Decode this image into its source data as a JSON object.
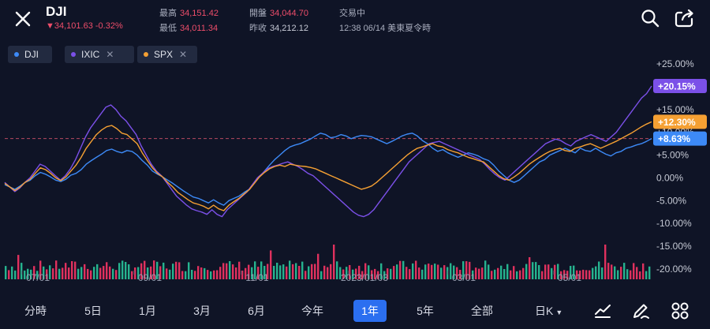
{
  "header": {
    "symbol": "DJI",
    "quote": "▼34,101.63 -0.32%",
    "stats": [
      {
        "label": "最高",
        "value": "34,151.42",
        "red": true
      },
      {
        "label": "最低",
        "value": "34,011.34",
        "red": true
      },
      {
        "label": "開盤",
        "value": "34,044.70",
        "red": true
      },
      {
        "label": "昨收",
        "value": "34,212.12",
        "red": false
      }
    ],
    "status": "交易中",
    "time": "12:38 06/14 美東夏令時"
  },
  "chips": [
    {
      "label": "DJI",
      "color": "#3d8af7",
      "closable": false
    },
    {
      "label": "IXIC",
      "color": "#7b50e8",
      "closable": true
    },
    {
      "label": "SPX",
      "color": "#f5a033",
      "closable": true
    }
  ],
  "chart_data": {
    "type": "line",
    "y_ticks": [
      "+25.00%",
      "+20.00%",
      "+15.00%",
      "+10.00%",
      "+5.00%",
      "0.00%",
      "-5.00%",
      "-10.00%",
      "-15.00%",
      "-20.00%"
    ],
    "x_ticks": [
      "07/01",
      "09/01",
      "11/01",
      "2023/01/03",
      "03/01",
      "05/01"
    ],
    "ylim": [
      -20,
      25
    ],
    "reference_level": 8.63,
    "series": [
      {
        "name": "DJI",
        "color": "#3d8af7",
        "last_label": "+8.63%",
        "last": 8.63,
        "values": [
          -1.5,
          -2.0,
          -2.5,
          -1.8,
          -1.0,
          -0.5,
          0.5,
          1.2,
          0.8,
          0.2,
          -0.5,
          -0.8,
          -0.3,
          0.6,
          1.0,
          1.8,
          3.0,
          3.8,
          4.5,
          5.2,
          6.0,
          6.3,
          5.8,
          5.5,
          6.0,
          5.8,
          5.0,
          3.8,
          2.8,
          1.5,
          0.8,
          0.2,
          -0.5,
          -1.2,
          -2.0,
          -2.8,
          -3.5,
          -4.2,
          -4.5,
          -5.0,
          -5.5,
          -4.8,
          -5.5,
          -6.0,
          -5.0,
          -4.5,
          -4.0,
          -3.2,
          -2.5,
          -1.0,
          0.2,
          1.5,
          2.8,
          4.0,
          5.0,
          6.0,
          6.8,
          7.2,
          7.5,
          8.0,
          8.5,
          9.2,
          9.8,
          9.5,
          8.8,
          9.0,
          9.5,
          9.2,
          8.6,
          9.0,
          9.3,
          9.2,
          9.0,
          8.5,
          8.0,
          7.5,
          8.0,
          8.6,
          9.2,
          9.6,
          9.8,
          9.2,
          8.2,
          7.5,
          6.5,
          5.8,
          6.2,
          5.5,
          5.0,
          4.5,
          5.0,
          5.5,
          5.2,
          4.8,
          4.2,
          3.8,
          2.8,
          1.5,
          0.5,
          -0.5,
          -1.0,
          -0.5,
          0.5,
          1.5,
          2.5,
          3.5,
          4.0,
          5.0,
          5.5,
          6.0,
          6.5,
          6.0,
          5.5,
          6.5,
          6.0,
          5.8,
          6.5,
          5.8,
          5.2,
          4.8,
          5.5,
          5.8,
          6.5,
          6.8,
          7.2,
          7.5,
          8.0,
          8.63
        ]
      },
      {
        "name": "IXIC",
        "color": "#7b50e8",
        "last_label": "+20.15%",
        "last": 20.15,
        "values": [
          -1.0,
          -2.0,
          -3.0,
          -2.2,
          -1.0,
          0.0,
          1.5,
          3.0,
          2.5,
          1.5,
          0.5,
          -0.5,
          0.5,
          2.0,
          4.0,
          6.5,
          9.0,
          11.0,
          12.5,
          14.0,
          15.5,
          16.0,
          15.0,
          13.5,
          12.5,
          11.0,
          9.5,
          7.0,
          5.0,
          3.0,
          1.5,
          0.5,
          -1.0,
          -2.5,
          -4.0,
          -5.0,
          -6.0,
          -6.8,
          -7.2,
          -7.5,
          -8.0,
          -7.0,
          -8.0,
          -8.5,
          -7.0,
          -6.0,
          -5.0,
          -4.0,
          -3.0,
          -1.5,
          0.0,
          1.0,
          2.0,
          2.5,
          2.8,
          3.2,
          3.5,
          3.0,
          2.5,
          1.8,
          1.0,
          0.5,
          -0.5,
          -1.5,
          -2.5,
          -3.5,
          -4.5,
          -5.5,
          -6.5,
          -7.5,
          -8.2,
          -8.5,
          -8.0,
          -7.0,
          -5.5,
          -4.0,
          -2.5,
          -1.0,
          0.5,
          2.0,
          3.5,
          4.5,
          5.5,
          6.5,
          7.5,
          7.8,
          8.0,
          7.5,
          7.0,
          6.5,
          6.0,
          5.5,
          5.0,
          4.5,
          4.0,
          3.0,
          1.8,
          0.8,
          0.0,
          -0.5,
          0.5,
          1.5,
          2.5,
          3.5,
          4.5,
          5.5,
          6.5,
          7.5,
          8.0,
          8.5,
          8.2,
          7.5,
          7.0,
          8.0,
          8.5,
          9.0,
          9.5,
          9.0,
          8.5,
          8.0,
          9.0,
          10.0,
          11.5,
          13.0,
          14.5,
          16.0,
          17.5,
          18.5,
          20.15
        ]
      },
      {
        "name": "SPX",
        "color": "#f5a033",
        "last_label": "+12.30%",
        "last": 12.3,
        "values": [
          -1.2,
          -2.0,
          -2.8,
          -2.0,
          -1.0,
          -0.3,
          1.0,
          2.2,
          1.8,
          1.0,
          0.0,
          -0.6,
          0.2,
          1.5,
          2.8,
          4.5,
          6.5,
          8.0,
          9.5,
          10.5,
          11.2,
          11.5,
          10.8,
          9.8,
          9.5,
          8.5,
          7.5,
          5.5,
          3.8,
          2.2,
          1.0,
          0.2,
          -1.0,
          -2.0,
          -3.2,
          -4.0,
          -4.8,
          -5.5,
          -5.8,
          -6.2,
          -6.8,
          -6.0,
          -6.8,
          -7.2,
          -6.0,
          -5.2,
          -4.5,
          -3.5,
          -2.6,
          -1.2,
          0.2,
          1.2,
          2.0,
          2.5,
          2.8,
          2.5,
          3.0,
          2.8,
          2.6,
          2.5,
          2.3,
          2.0,
          1.5,
          1.0,
          0.5,
          0.0,
          -0.5,
          -1.0,
          -1.5,
          -2.0,
          -2.5,
          -2.2,
          -1.8,
          -1.0,
          0.0,
          1.0,
          2.0,
          3.0,
          4.0,
          5.0,
          5.8,
          6.5,
          6.8,
          7.2,
          7.5,
          7.0,
          6.8,
          6.2,
          5.8,
          5.5,
          5.0,
          4.5,
          4.2,
          3.8,
          3.5,
          2.5,
          1.5,
          0.5,
          -0.2,
          -0.5,
          0.2,
          1.0,
          2.0,
          3.0,
          3.8,
          4.5,
          5.2,
          5.8,
          6.2,
          6.5,
          6.0,
          5.8,
          6.5,
          6.8,
          7.2,
          7.5,
          7.0,
          6.5,
          7.0,
          7.5,
          8.0,
          8.6,
          9.2,
          9.8,
          10.5,
          11.2,
          11.8,
          12.3
        ]
      }
    ]
  },
  "periods": [
    {
      "label": "分時",
      "active": false
    },
    {
      "label": "5日",
      "active": false
    },
    {
      "label": "1月",
      "active": false
    },
    {
      "label": "3月",
      "active": false
    },
    {
      "label": "6月",
      "active": false
    },
    {
      "label": "今年",
      "active": false
    },
    {
      "label": "1年",
      "active": true
    },
    {
      "label": "5年",
      "active": false
    },
    {
      "label": "全部",
      "active": false
    }
  ],
  "kline_label": "日K",
  "icons": {
    "close": "close-icon",
    "search": "search-icon",
    "share": "share-icon",
    "indicator": "indicator-icon",
    "draw": "draw-pen-icon",
    "grid": "grid-icon"
  }
}
